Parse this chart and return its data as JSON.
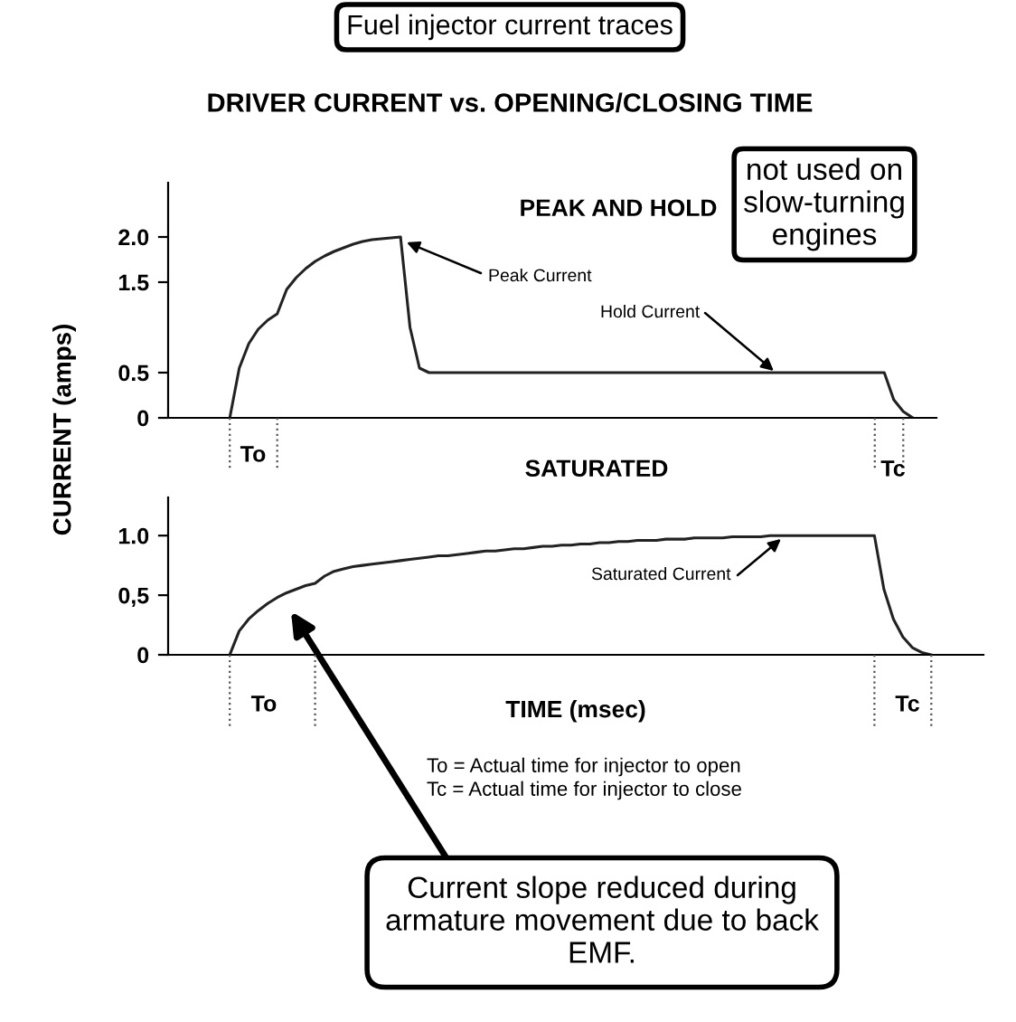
{
  "chart_data": [
    {
      "type": "line",
      "title": "PEAK AND HOLD",
      "ylabel": "CURRENT (amps)",
      "categories": [
        null,
        null,
        null,
        null,
        null,
        null,
        null,
        null,
        null,
        null,
        null,
        null,
        null,
        null,
        null,
        null,
        null,
        null,
        null,
        null,
        null,
        null,
        null,
        null,
        null,
        null,
        null,
        null,
        null,
        null,
        null,
        null,
        null,
        null,
        null,
        null,
        null,
        null,
        null,
        null,
        null,
        null,
        null,
        null,
        null,
        null,
        null,
        null,
        null,
        null,
        null,
        null,
        null,
        null,
        null,
        null,
        null,
        null,
        null,
        null,
        null,
        null,
        null,
        null,
        null,
        null,
        null,
        null,
        null,
        null,
        null,
        null,
        null,
        null,
        null,
        null,
        null,
        null,
        null,
        null,
        null
      ],
      "series": [
        {
          "color": "#222222",
          "values": [
            null,
            null,
            null,
            null,
            null,
            null,
            0,
            0.55,
            0.82,
            0.98,
            1.08,
            1.15,
            1.42,
            1.55,
            1.65,
            1.73,
            1.79,
            1.84,
            1.88,
            1.92,
            1.95,
            1.97,
            1.98,
            1.99,
            2.0,
            1.0,
            0.55,
            0.5,
            0.5,
            0.5,
            0.5,
            0.5,
            0.5,
            0.5,
            0.5,
            0.5,
            0.5,
            0.5,
            0.5,
            0.5,
            0.5,
            0.5,
            0.5,
            0.5,
            0.5,
            0.5,
            0.5,
            0.5,
            0.5,
            0.5,
            0.5,
            0.5,
            0.5,
            0.5,
            0.5,
            0.5,
            0.5,
            0.5,
            0.5,
            0.5,
            0.5,
            0.5,
            0.5,
            0.5,
            0.5,
            0.5,
            0.5,
            0.5,
            0.5,
            0.5,
            0.5,
            0.5,
            0.5,
            0.5,
            0.5,
            0.5,
            0.2,
            0.07,
            0,
            null,
            null
          ]
        }
      ],
      "ylim": [
        0,
        2.6
      ],
      "yticks": [
        0,
        {
          "value": 0.5,
          "label": "0.5"
        },
        {
          "value": 1.5,
          "label": "1.5"
        },
        {
          "value": 2.0,
          "label": "2.0"
        }
      ],
      "tick_labels": "y",
      "line_style": "solid",
      "annotations": [
        "Fuel injector current traces",
        "DRIVER CURRENT vs. OPENING/CLOSING TIME",
        "not used on\nslow-turning\nengines",
        "Peak Current",
        "Hold Current",
        "To",
        "Tc"
      ]
    },
    {
      "type": "line",
      "title": "SATURATED",
      "xlabel": "TIME (msec)",
      "categories": [
        null,
        null,
        null,
        null,
        null,
        null,
        null,
        null,
        null,
        null,
        null,
        null,
        null,
        null,
        null,
        null,
        null,
        null,
        null,
        null,
        null,
        null,
        null,
        null,
        null,
        null,
        null,
        null,
        null,
        null,
        null,
        null,
        null,
        null,
        null,
        null,
        null,
        null,
        null,
        null,
        null,
        null,
        null,
        null,
        null,
        null,
        null,
        null,
        null,
        null,
        null,
        null,
        null,
        null,
        null,
        null,
        null,
        null,
        null,
        null,
        null,
        null,
        null,
        null,
        null,
        null,
        null,
        null,
        null,
        null,
        null,
        null,
        null,
        null,
        null,
        null,
        null,
        null,
        null,
        null,
        null,
        null,
        null,
        null,
        null,
        null
      ],
      "series": [
        {
          "color": "#222222",
          "values": [
            null,
            null,
            null,
            null,
            null,
            null,
            0,
            0.2,
            0.3,
            0.37,
            0.43,
            0.48,
            0.52,
            0.55,
            0.58,
            0.6,
            0.66,
            0.7,
            0.72,
            0.74,
            0.75,
            0.76,
            0.77,
            0.78,
            0.79,
            0.8,
            0.81,
            0.82,
            0.83,
            0.83,
            0.84,
            0.85,
            0.86,
            0.87,
            0.87,
            0.88,
            0.89,
            0.89,
            0.9,
            0.91,
            0.91,
            0.92,
            0.92,
            0.93,
            0.93,
            0.94,
            0.94,
            0.95,
            0.95,
            0.96,
            0.96,
            0.96,
            0.97,
            0.97,
            0.97,
            0.98,
            0.98,
            0.98,
            0.98,
            0.99,
            0.99,
            0.99,
            0.99,
            1.0,
            1.0,
            1.0,
            1.0,
            1.0,
            1.0,
            1.0,
            1.0,
            1.0,
            1.0,
            1.0,
            1.0,
            0.55,
            0.3,
            0.15,
            0.06,
            0.02,
            0,
            null,
            null,
            null,
            null,
            null
          ]
        }
      ],
      "ylim": [
        0,
        1.32
      ],
      "yticks": [
        0,
        {
          "value": 0.5,
          "label": "0,5"
        },
        {
          "value": 1.0,
          "label": "1.0"
        }
      ],
      "tick_labels": "y",
      "line_style": "solid",
      "annotations": [
        "Saturated Current",
        "To = Actual time for injector to open",
        "Tc = Actual time for injector to close",
        "Current slope reduced during\narmature movement due to back\nEMF.",
        "To",
        "Tc"
      ]
    }
  ]
}
